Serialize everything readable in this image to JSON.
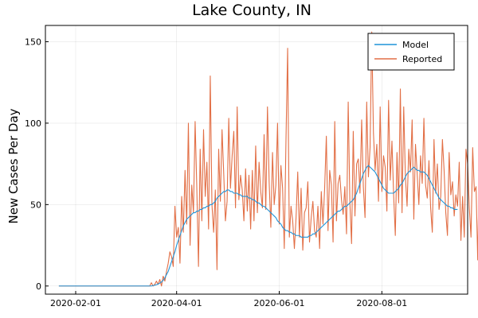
{
  "chart_data": {
    "type": "line",
    "title": "Lake County, IN",
    "xlabel": "",
    "ylabel": "New Cases Per Day",
    "x_start": "2020-01-22",
    "x_end": "2020-09-15",
    "xlim": [
      "2020-01-14",
      "2020-09-21"
    ],
    "ylim": [
      -5,
      160
    ],
    "x_ticks": [
      "2020-02-01",
      "2020-04-01",
      "2020-06-01",
      "2020-08-01"
    ],
    "y_ticks": [
      0,
      50,
      100,
      150
    ],
    "grid": true,
    "legend_position": "top-right",
    "series": [
      {
        "name": "Model",
        "color": "#1f94d9",
        "values": [
          0,
          0,
          0,
          0,
          0,
          0,
          0,
          0,
          0,
          0,
          0,
          0,
          0,
          0,
          0,
          0,
          0,
          0,
          0,
          0,
          0,
          0,
          0,
          0,
          0,
          0,
          0,
          0,
          0,
          0,
          0,
          0,
          0,
          0,
          0,
          0,
          0,
          0,
          0,
          0,
          0,
          0,
          0,
          0,
          0,
          0,
          0,
          0,
          0,
          0,
          0,
          0,
          0,
          0,
          0,
          0,
          0.3,
          0.5,
          0.8,
          1.2,
          1.8,
          2.5,
          3.5,
          5,
          7,
          9,
          12,
          15,
          18,
          21,
          25,
          28,
          31,
          34,
          37,
          39,
          41,
          42,
          43,
          44,
          45,
          45,
          46,
          46,
          47,
          47,
          48,
          48,
          49,
          49,
          50,
          50,
          51,
          52,
          54,
          55,
          56,
          57,
          58,
          58,
          59,
          59,
          58,
          58,
          57,
          57,
          57,
          56,
          56,
          55,
          55,
          55,
          55,
          54,
          54,
          53,
          53,
          52,
          51,
          51,
          50,
          49,
          49,
          48,
          47,
          46,
          45,
          44,
          43,
          42,
          40,
          39,
          38,
          36,
          35,
          34,
          34,
          33,
          33,
          32,
          32,
          31,
          31,
          31,
          30,
          30,
          30,
          30,
          30,
          31,
          31,
          32,
          32,
          33,
          34,
          35,
          36,
          37,
          38,
          39,
          40,
          41,
          42,
          43,
          44,
          45,
          46,
          46,
          47,
          48,
          49,
          49,
          50,
          51,
          52,
          53,
          55,
          57,
          60,
          63,
          66,
          69,
          71,
          73,
          74,
          73,
          72,
          71,
          70,
          68,
          66,
          64,
          62,
          60,
          59,
          58,
          57,
          57,
          57,
          57,
          58,
          59,
          60,
          62,
          63,
          65,
          67,
          69,
          70,
          71,
          72,
          73,
          72,
          71,
          71,
          70,
          70,
          70,
          69,
          68,
          66,
          64,
          62,
          60,
          58,
          56,
          54,
          53,
          52,
          51,
          50,
          49,
          49,
          48,
          48,
          47,
          47,
          47
        ]
      },
      {
        "name": "Reported",
        "color": "#e26f46",
        "values": [
          0,
          0,
          0,
          0,
          0,
          0,
          0,
          0,
          0,
          0,
          0,
          0,
          0,
          0,
          0,
          0,
          0,
          0,
          0,
          0,
          0,
          0,
          0,
          0,
          0,
          0,
          0,
          0,
          0,
          0,
          0,
          0,
          0,
          0,
          0,
          0,
          0,
          0,
          0,
          0,
          0,
          0,
          0,
          0,
          0,
          0,
          0,
          0,
          0,
          0,
          0,
          0,
          0,
          0,
          0,
          2,
          0,
          1,
          3,
          1,
          4,
          0,
          6,
          3,
          9,
          14,
          21,
          18,
          12,
          49,
          30,
          36,
          14,
          55,
          33,
          71,
          38,
          100,
          25,
          62,
          45,
          101,
          60,
          12,
          84,
          40,
          96,
          55,
          76,
          35,
          129,
          50,
          33,
          59,
          10,
          84,
          52,
          96,
          69,
          40,
          52,
          103,
          60,
          80,
          95,
          48,
          110,
          53,
          68,
          59,
          40,
          72,
          46,
          68,
          35,
          71,
          40,
          86,
          45,
          76,
          58,
          48,
          93,
          47,
          110,
          64,
          36,
          82,
          50,
          62,
          100,
          38,
          74,
          60,
          23,
          89,
          146,
          30,
          49,
          40,
          23,
          42,
          70,
          30,
          60,
          22,
          45,
          48,
          64,
          27,
          42,
          52,
          34,
          30,
          49,
          23,
          58,
          38,
          60,
          92,
          34,
          71,
          62,
          27,
          101,
          40,
          63,
          68,
          53,
          44,
          61,
          32,
          113,
          51,
          26,
          95,
          43,
          75,
          78,
          57,
          102,
          61,
          42,
          113,
          67,
          85,
          156,
          94,
          71,
          87,
          52,
          110,
          58,
          80,
          73,
          46,
          114,
          65,
          89,
          56,
          31,
          82,
          51,
          121,
          45,
          110,
          67,
          49,
          84,
          70,
          102,
          41,
          87,
          69,
          50,
          80,
          63,
          103,
          62,
          54,
          77,
          48,
          33,
          90,
          57,
          75,
          47,
          55,
          90,
          71,
          45,
          31,
          82,
          56,
          64,
          43,
          56,
          49,
          76,
          28,
          55,
          30,
          84,
          75,
          48,
          30,
          85,
          58,
          61,
          16,
          80,
          55,
          82,
          77,
          44,
          47
        ]
      }
    ]
  }
}
